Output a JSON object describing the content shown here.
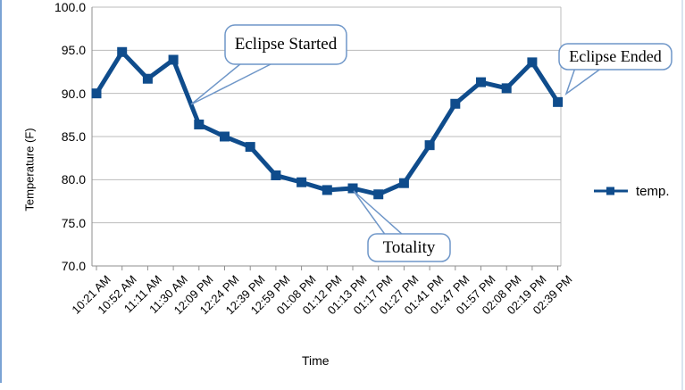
{
  "window": {
    "left_border_color": "#7BA3D4",
    "right_border_color": "#D9E4F0"
  },
  "chart_data": {
    "type": "line",
    "title": "",
    "xlabel": "Time",
    "ylabel": "Temperature (F)",
    "ylim": [
      70,
      100
    ],
    "grid": true,
    "legend_position": "right",
    "yticks": [
      "100.0",
      "95.0",
      "90.0",
      "85.0",
      "80.0",
      "75.0",
      "70.0"
    ],
    "categories": [
      "10:21 AM",
      "10:52 AM",
      "11:11 AM",
      "11:30 AM",
      "12:09 PM",
      "12:24 PM",
      "12:39 PM",
      "12:59 PM",
      "01:08 PM",
      "01:12 PM",
      "01:13 PM",
      "01:17 PM",
      "01:27 PM",
      "01:41 PM",
      "01:47 PM",
      "01:57 PM",
      "02:08 PM",
      "02:19 PM",
      "02:39 PM"
    ],
    "series": [
      {
        "name": "temp.",
        "marker": "square",
        "values": [
          90.0,
          94.8,
          91.7,
          93.9,
          86.4,
          85.0,
          83.8,
          80.5,
          79.7,
          78.8,
          79.0,
          78.3,
          79.6,
          84.0,
          88.8,
          91.3,
          90.6,
          93.6,
          89.0
        ]
      }
    ],
    "annotations": [
      {
        "label": "Eclipse Started"
      },
      {
        "label": "Totality"
      },
      {
        "label": "Eclipse Ended"
      }
    ],
    "colors": {
      "series": "#0F4C8C",
      "callout_border": "#6E96C8",
      "gridline": "#BBBBBB",
      "axis": "#8F8F8F"
    }
  }
}
